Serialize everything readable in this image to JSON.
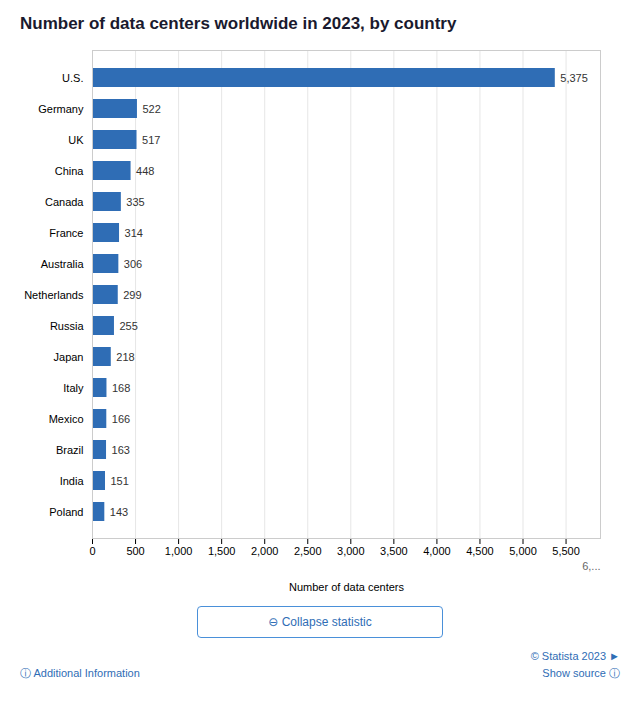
{
  "chart_data": {
    "type": "bar",
    "orientation": "horizontal",
    "title": "Number of data centers worldwide in 2023, by country",
    "categories": [
      "Poland",
      "India",
      "Brazil",
      "Mexico",
      "Italy",
      "Japan",
      "Russia",
      "Netherlands",
      "Australia",
      "France",
      "Canada",
      "China",
      "UK",
      "Germany",
      "U.S."
    ],
    "values": [
      143,
      151,
      163,
      166,
      168,
      218,
      255,
      299,
      306,
      314,
      335,
      448,
      517,
      522,
      5375
    ],
    "value_labels": [
      "143",
      "151",
      "163",
      "166",
      "168",
      "218",
      "255",
      "299",
      "306",
      "314",
      "335",
      "448",
      "517",
      "522",
      "5,375"
    ],
    "data_labels": true,
    "color": "#2f6db5",
    "xlabel": "Number of data centers",
    "xlim": [
      0,
      5900
    ],
    "xticks": [
      0,
      500,
      {
        "value": 1000,
        "label": "1,000"
      },
      {
        "value": 1500,
        "label": "1,500"
      },
      {
        "value": 2000,
        "label": "2,000"
      },
      {
        "value": 2500,
        "label": "2,500"
      },
      {
        "value": 3000,
        "label": "3,000"
      },
      {
        "value": 3500,
        "label": "3,500"
      },
      {
        "value": 4000,
        "label": "4,000"
      },
      {
        "value": 4500,
        "label": "4,500"
      },
      {
        "value": 5000,
        "label": "5,000"
      },
      {
        "value": 5500,
        "label": "5,500"
      }
    ],
    "grid": true,
    "annotations": [
      "6,...",
      "⊖ Collapse statistic",
      "ⓘ Additional Information",
      "© Statista 2023 ►",
      "Show source ⓘ"
    ]
  }
}
